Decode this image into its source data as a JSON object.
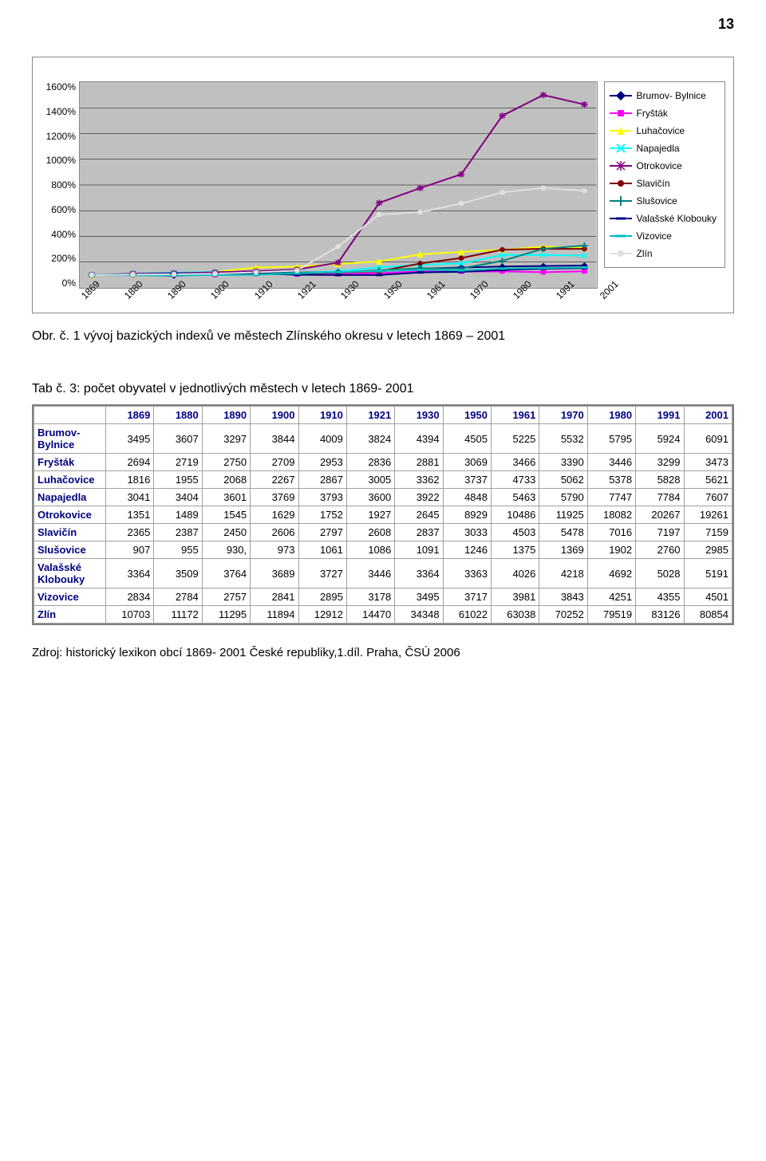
{
  "page_number": "13",
  "chart": {
    "type": "line",
    "categories": [
      "1869",
      "1880",
      "1890",
      "1900",
      "1910",
      "1921",
      "1930",
      "1950",
      "1961",
      "1970",
      "1980",
      "1991",
      "2001"
    ],
    "y_ticks": [
      "1600%",
      "1400%",
      "1200%",
      "1000%",
      "800%",
      "600%",
      "400%",
      "200%",
      "0%"
    ],
    "ylim_max": 1600,
    "plot_bg": "#c0c0c0",
    "grid_color": "#000000",
    "series": [
      {
        "name": "Brumov- Bylnice",
        "color": "#000080",
        "marker": "diamond",
        "values": [
          100,
          103,
          94,
          110,
          115,
          109,
          126,
          129,
          150,
          158,
          166,
          170,
          174
        ]
      },
      {
        "name": "Fryšták",
        "color": "#ff00ff",
        "marker": "square",
        "values": [
          100,
          101,
          102,
          101,
          110,
          105,
          107,
          114,
          129,
          126,
          128,
          122,
          129
        ]
      },
      {
        "name": "Luhačovice",
        "color": "#ffff00",
        "marker": "triangle",
        "values": [
          100,
          108,
          114,
          125,
          158,
          165,
          185,
          206,
          261,
          279,
          296,
          321,
          310
        ]
      },
      {
        "name": "Napajedla",
        "color": "#00ffff",
        "marker": "x",
        "values": [
          100,
          112,
          118,
          124,
          125,
          118,
          129,
          159,
          180,
          190,
          255,
          256,
          250
        ]
      },
      {
        "name": "Otrokovice",
        "color": "#800080",
        "marker": "star",
        "values": [
          100,
          110,
          114,
          121,
          130,
          143,
          196,
          661,
          776,
          883,
          1339,
          1500,
          1426
        ]
      },
      {
        "name": "Slavičín",
        "color": "#800000",
        "marker": "circle",
        "values": [
          100,
          101,
          104,
          110,
          118,
          110,
          120,
          128,
          190,
          232,
          297,
          304,
          303
        ]
      },
      {
        "name": "Slušovice",
        "color": "#008080",
        "marker": "plus",
        "values": [
          100,
          105,
          103,
          107,
          117,
          120,
          120,
          137,
          152,
          151,
          210,
          304,
          329
        ]
      },
      {
        "name": "Valašské Klobouky",
        "color": "#000080",
        "marker": "dash",
        "values": [
          100,
          104,
          112,
          110,
          111,
          102,
          100,
          100,
          120,
          125,
          139,
          149,
          154
        ]
      },
      {
        "name": "Vizovice",
        "color": "#00c0c0",
        "marker": "dash",
        "values": [
          100,
          98,
          97,
          100,
          102,
          112,
          123,
          131,
          140,
          136,
          150,
          154,
          159
        ]
      },
      {
        "name": "Zlín",
        "color": "#e0e0e0",
        "marker": "circle",
        "values": [
          100,
          104,
          106,
          111,
          121,
          135,
          321,
          570,
          589,
          656,
          743,
          777,
          755
        ]
      }
    ]
  },
  "caption1": "Obr. č. 1 vývoj bazických indexů ve městech Zlínského okresu v letech 1869 – 2001",
  "caption2": "Tab č. 3: počet obyvatel v jednotlivých městech v letech 1869- 2001",
  "table": {
    "columns": [
      "",
      "1869",
      "1880",
      "1890",
      "1900",
      "1910",
      "1921",
      "1930",
      "1950",
      "1961",
      "1970",
      "1980",
      "1991",
      "2001"
    ],
    "rows": [
      [
        "Brumov-\nBylnice",
        "3495",
        "3607",
        "3297",
        "3844",
        "4009",
        "3824",
        "4394",
        "4505",
        "5225",
        "5532",
        "5795",
        "5924",
        "6091"
      ],
      [
        "Fryšták",
        "2694",
        "2719",
        "2750",
        "2709",
        "2953",
        "2836",
        "2881",
        "3069",
        "3466",
        "3390",
        "3446",
        "3299",
        "3473"
      ],
      [
        "Luhačovice",
        "1816",
        "1955",
        "2068",
        "2267",
        "2867",
        "3005",
        "3362",
        "3737",
        "4733",
        "5062",
        "5378",
        "5828",
        "5621"
      ],
      [
        "Napajedla",
        "3041",
        "3404",
        "3601",
        "3769",
        "3793",
        "3600",
        "3922",
        "4848",
        "5463",
        "5790",
        "7747",
        "7784",
        "7607"
      ],
      [
        "Otrokovice",
        "1351",
        "1489",
        "1545",
        "1629",
        "1752",
        "1927",
        "2645",
        "8929",
        "10486",
        "11925",
        "18082",
        "20267",
        "19261"
      ],
      [
        "Slavičín",
        "2365",
        "2387",
        "2450",
        "2606",
        "2797",
        "2608",
        "2837",
        "3033",
        "4503",
        "5478",
        "7016",
        "7197",
        "7159"
      ],
      [
        "Slušovice",
        "907",
        "955",
        "930,",
        "973",
        "1061",
        "1086",
        "1091",
        "1246",
        "1375",
        "1369",
        "1902",
        "2760",
        "2985"
      ],
      [
        "Valašské\nKlobouky",
        "3364",
        "3509",
        "3764",
        "3689",
        "3727",
        "3446",
        "3364",
        "3363",
        "4026",
        "4218",
        "4692",
        "5028",
        "5191"
      ],
      [
        "Vizovice",
        "2834",
        "2784",
        "2757",
        "2841",
        "2895",
        "3178",
        "3495",
        "3717",
        "3981",
        "3843",
        "4251",
        "4355",
        "4501"
      ],
      [
        "Zlín",
        "10703",
        "11172",
        "11295",
        "11894",
        "12912",
        "14470",
        "34348",
        "61022",
        "63038",
        "70252",
        "79519",
        "83126",
        "80854"
      ]
    ]
  },
  "credit": "Zdroj: historický lexikon obcí 1869- 2001 České republiky,1.díl. Praha, ČSÚ 2006"
}
